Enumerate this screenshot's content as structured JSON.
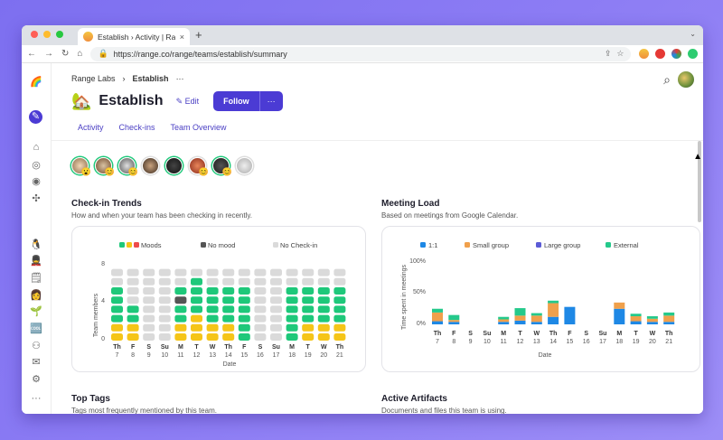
{
  "browser": {
    "tab_title": "Establish › Activity | Range",
    "tab_close": "×",
    "new_tab": "+",
    "tab_menu": "⌄",
    "url": "https://range.co/range/teams/establish/summary",
    "nav": {
      "back": "←",
      "forward": "→",
      "reload": "↻",
      "home": "⌂"
    },
    "omni_icons": {
      "lock": "🔒",
      "share": "⇪",
      "star": "☆"
    },
    "menu": "⋮"
  },
  "breadcrumb": {
    "org": "Range Labs",
    "separator": "›",
    "team": "Establish",
    "more": "···"
  },
  "team": {
    "emoji": "🏡",
    "name": "Establish",
    "edit": "✎ Edit",
    "follow": "Follow",
    "follow_more": "···"
  },
  "tabs": [
    "Activity",
    "Check-ins",
    "Team Overview"
  ],
  "search_icon": "⌕",
  "sidebar_icons": [
    {
      "name": "rainbow-logo-icon",
      "glyph": "🌈"
    },
    {
      "name": "pencil-icon",
      "glyph": "✎"
    },
    {
      "name": "home-icon",
      "glyph": "⌂"
    },
    {
      "name": "check-circle-icon",
      "glyph": "◎"
    },
    {
      "name": "target-icon",
      "glyph": "◉"
    },
    {
      "name": "network-icon",
      "glyph": "✣"
    },
    {
      "name": "penguin-icon",
      "glyph": "🐧"
    },
    {
      "name": "guard-icon",
      "glyph": "💂"
    },
    {
      "name": "notepad-icon",
      "glyph": "🗒"
    },
    {
      "name": "person-icon",
      "glyph": "👩"
    },
    {
      "name": "sprout-icon",
      "glyph": "🌱"
    },
    {
      "name": "cool-icon",
      "glyph": "🆒"
    },
    {
      "name": "add-person-icon",
      "glyph": "⚇"
    },
    {
      "name": "feedback-icon",
      "glyph": "✉"
    },
    {
      "name": "settings-sliders-icon",
      "glyph": "⚙"
    },
    {
      "name": "more-icon",
      "glyph": "···"
    }
  ],
  "people_emojis": [
    "😮",
    "😊",
    "😊",
    "",
    "",
    "😊",
    "😊",
    ""
  ],
  "checkin_trends": {
    "title": "Check-in Trends",
    "subtitle": "How and when your team has been checking in recently.",
    "legend": [
      "Moods",
      "No mood",
      "No Check-in"
    ],
    "ylabel": "Team members",
    "xlabel": "Date",
    "yticks": [
      "8",
      "4",
      "0"
    ]
  },
  "meeting_load": {
    "title": "Meeting Load",
    "subtitle": "Based on meetings from Google Calendar.",
    "legend": [
      "1:1",
      "Small group",
      "Large group",
      "External"
    ],
    "ylabel": "Time spent in meetings",
    "xlabel": "Date",
    "yticks": [
      "100%",
      "50%",
      "0%"
    ]
  },
  "top_tags": {
    "title": "Top Tags",
    "subtitle": "Tags most frequently mentioned by this team."
  },
  "active_artifacts": {
    "title": "Active Artifacts",
    "subtitle": "Documents and files this team is using."
  },
  "colors": {
    "accent": "#4b3bd4",
    "green": "#1ec87a",
    "yellow": "#f5c518",
    "red": "#ee4b4b",
    "gray": "#dadada",
    "dark": "#555555",
    "blue": "#1e88e5",
    "orange": "#f0a04b",
    "purple": "#5b5bd6",
    "teal": "#24c98b"
  },
  "chart_data": [
    {
      "type": "heatmap",
      "title": "Check-in Trends",
      "xlabel": "Date",
      "ylabel": "Team members",
      "categories_day": [
        "Th",
        "F",
        "S",
        "Su",
        "M",
        "T",
        "W",
        "Th",
        "F",
        "S",
        "Su",
        "M",
        "T",
        "W",
        "Th"
      ],
      "categories_date": [
        "7",
        "8",
        "9",
        "10",
        "11",
        "12",
        "13",
        "14",
        "15",
        "16",
        "17",
        "18",
        "19",
        "20",
        "21"
      ],
      "legend": [
        "Moods",
        "No mood",
        "No Check-in"
      ],
      "ylim": [
        0,
        8
      ],
      "status_codes": {
        "g": "mood-green",
        "y": "mood-yellow",
        "r": "mood-red",
        "d": "no-mood",
        "n": "no-check-in"
      },
      "columns": [
        "yyggggnn",
        "yyggnnnn",
        "nnnnnnnn",
        "nnnnnnnn",
        "yyggdgnn",
        "yyyggggn",
        "yyggggnn",
        "yyggggnn",
        "ggggggnn",
        "nnnnnnnn",
        "nnnnnnnn",
        "ggggggnn",
        "yyggggnn",
        "yyggggnn",
        "yyggggnn"
      ]
    },
    {
      "type": "bar",
      "title": "Meeting Load",
      "xlabel": "Date",
      "ylabel": "Time spent in meetings",
      "categories_day": [
        "Th",
        "F",
        "S",
        "Su",
        "M",
        "T",
        "W",
        "Th",
        "F",
        "S",
        "Su",
        "M",
        "T",
        "W",
        "Th"
      ],
      "categories_date": [
        "7",
        "8",
        "9",
        "10",
        "11",
        "12",
        "13",
        "14",
        "15",
        "16",
        "17",
        "18",
        "19",
        "20",
        "21"
      ],
      "ylim": [
        0,
        100
      ],
      "series": [
        {
          "name": "1:1",
          "color": "#1e88e5",
          "values": [
            5,
            4,
            0,
            0,
            4,
            6,
            4,
            12,
            28,
            0,
            0,
            25,
            5,
            4,
            4
          ]
        },
        {
          "name": "Small group",
          "color": "#f0a04b",
          "values": [
            14,
            3,
            0,
            0,
            4,
            8,
            10,
            22,
            0,
            0,
            0,
            10,
            8,
            5,
            10
          ]
        },
        {
          "name": "Large group",
          "color": "#5b5bd6",
          "values": [
            0,
            0,
            0,
            0,
            0,
            0,
            0,
            0,
            0,
            0,
            0,
            0,
            0,
            0,
            0
          ]
        },
        {
          "name": "External",
          "color": "#24c98b",
          "values": [
            6,
            8,
            0,
            0,
            4,
            12,
            4,
            4,
            0,
            0,
            0,
            0,
            4,
            4,
            5
          ]
        }
      ]
    }
  ]
}
